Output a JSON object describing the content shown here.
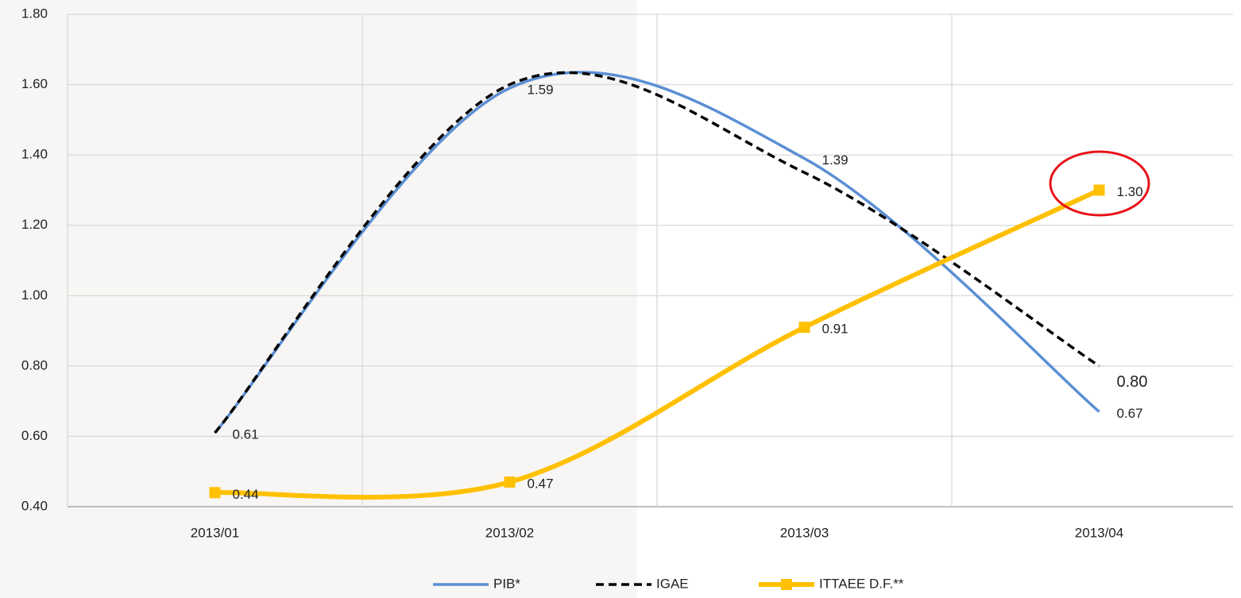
{
  "chart_data": {
    "type": "line",
    "categories": [
      "2013/01",
      "2013/02",
      "2013/03",
      "2013/04"
    ],
    "series": [
      {
        "name": "PIB*",
        "color": "#5b8fd4",
        "values": [
          0.61,
          1.59,
          1.39,
          0.67
        ],
        "value_labels": [
          "0.61",
          "1.59",
          "1.39",
          "0.67"
        ]
      },
      {
        "name": "IGAE",
        "color": "#000000",
        "dashed": true,
        "values": [
          0.61,
          1.6,
          1.35,
          0.8
        ],
        "value_labels": [
          null,
          null,
          null,
          "0.80"
        ]
      },
      {
        "name": "ITTAEE D.F.**",
        "color": "#ffc000",
        "marker": "square",
        "values": [
          0.44,
          0.47,
          0.91,
          1.3
        ],
        "value_labels": [
          "0.44",
          "0.47",
          "0.91",
          "1.30"
        ]
      }
    ],
    "ylim": [
      0.4,
      1.8
    ],
    "yticks": [
      {
        "value": 0.4,
        "label": "0.40"
      },
      {
        "value": 0.6,
        "label": "0.60"
      },
      {
        "value": 0.8,
        "label": "0.80"
      },
      {
        "value": 1.0,
        "label": "1.00"
      },
      {
        "value": 1.2,
        "label": "1.20"
      },
      {
        "value": 1.4,
        "label": "1.40"
      },
      {
        "value": 1.6,
        "label": "1.60"
      },
      {
        "value": 1.8,
        "label": "1.80"
      }
    ],
    "grid": true,
    "legend": "bottom"
  }
}
